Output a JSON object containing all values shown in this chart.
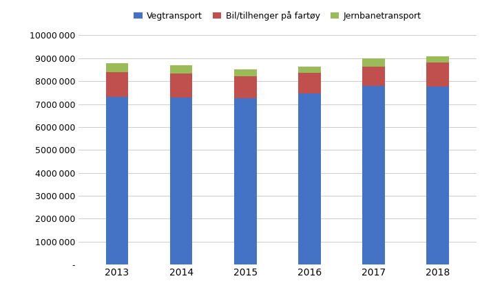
{
  "years": [
    "2013",
    "2014",
    "2015",
    "2016",
    "2017",
    "2018"
  ],
  "vegtransport": [
    7300000,
    7280000,
    7250000,
    7450000,
    7800000,
    7750000
  ],
  "bil_tilhenger": [
    1100000,
    1050000,
    950000,
    920000,
    820000,
    1050000
  ],
  "jernbanetransport": [
    380000,
    360000,
    310000,
    270000,
    370000,
    280000
  ],
  "color_veg": "#4472C4",
  "color_bil": "#C0504D",
  "color_jernb": "#9BBB59",
  "label_veg": "Vegtransport",
  "label_bil": "Bil/tilhenger på fartøy",
  "label_jernb": "Jernbanetransport",
  "ylim": [
    0,
    10000000
  ],
  "ytick_step": 1000000,
  "background": "#FFFFFF",
  "bar_width": 0.35
}
